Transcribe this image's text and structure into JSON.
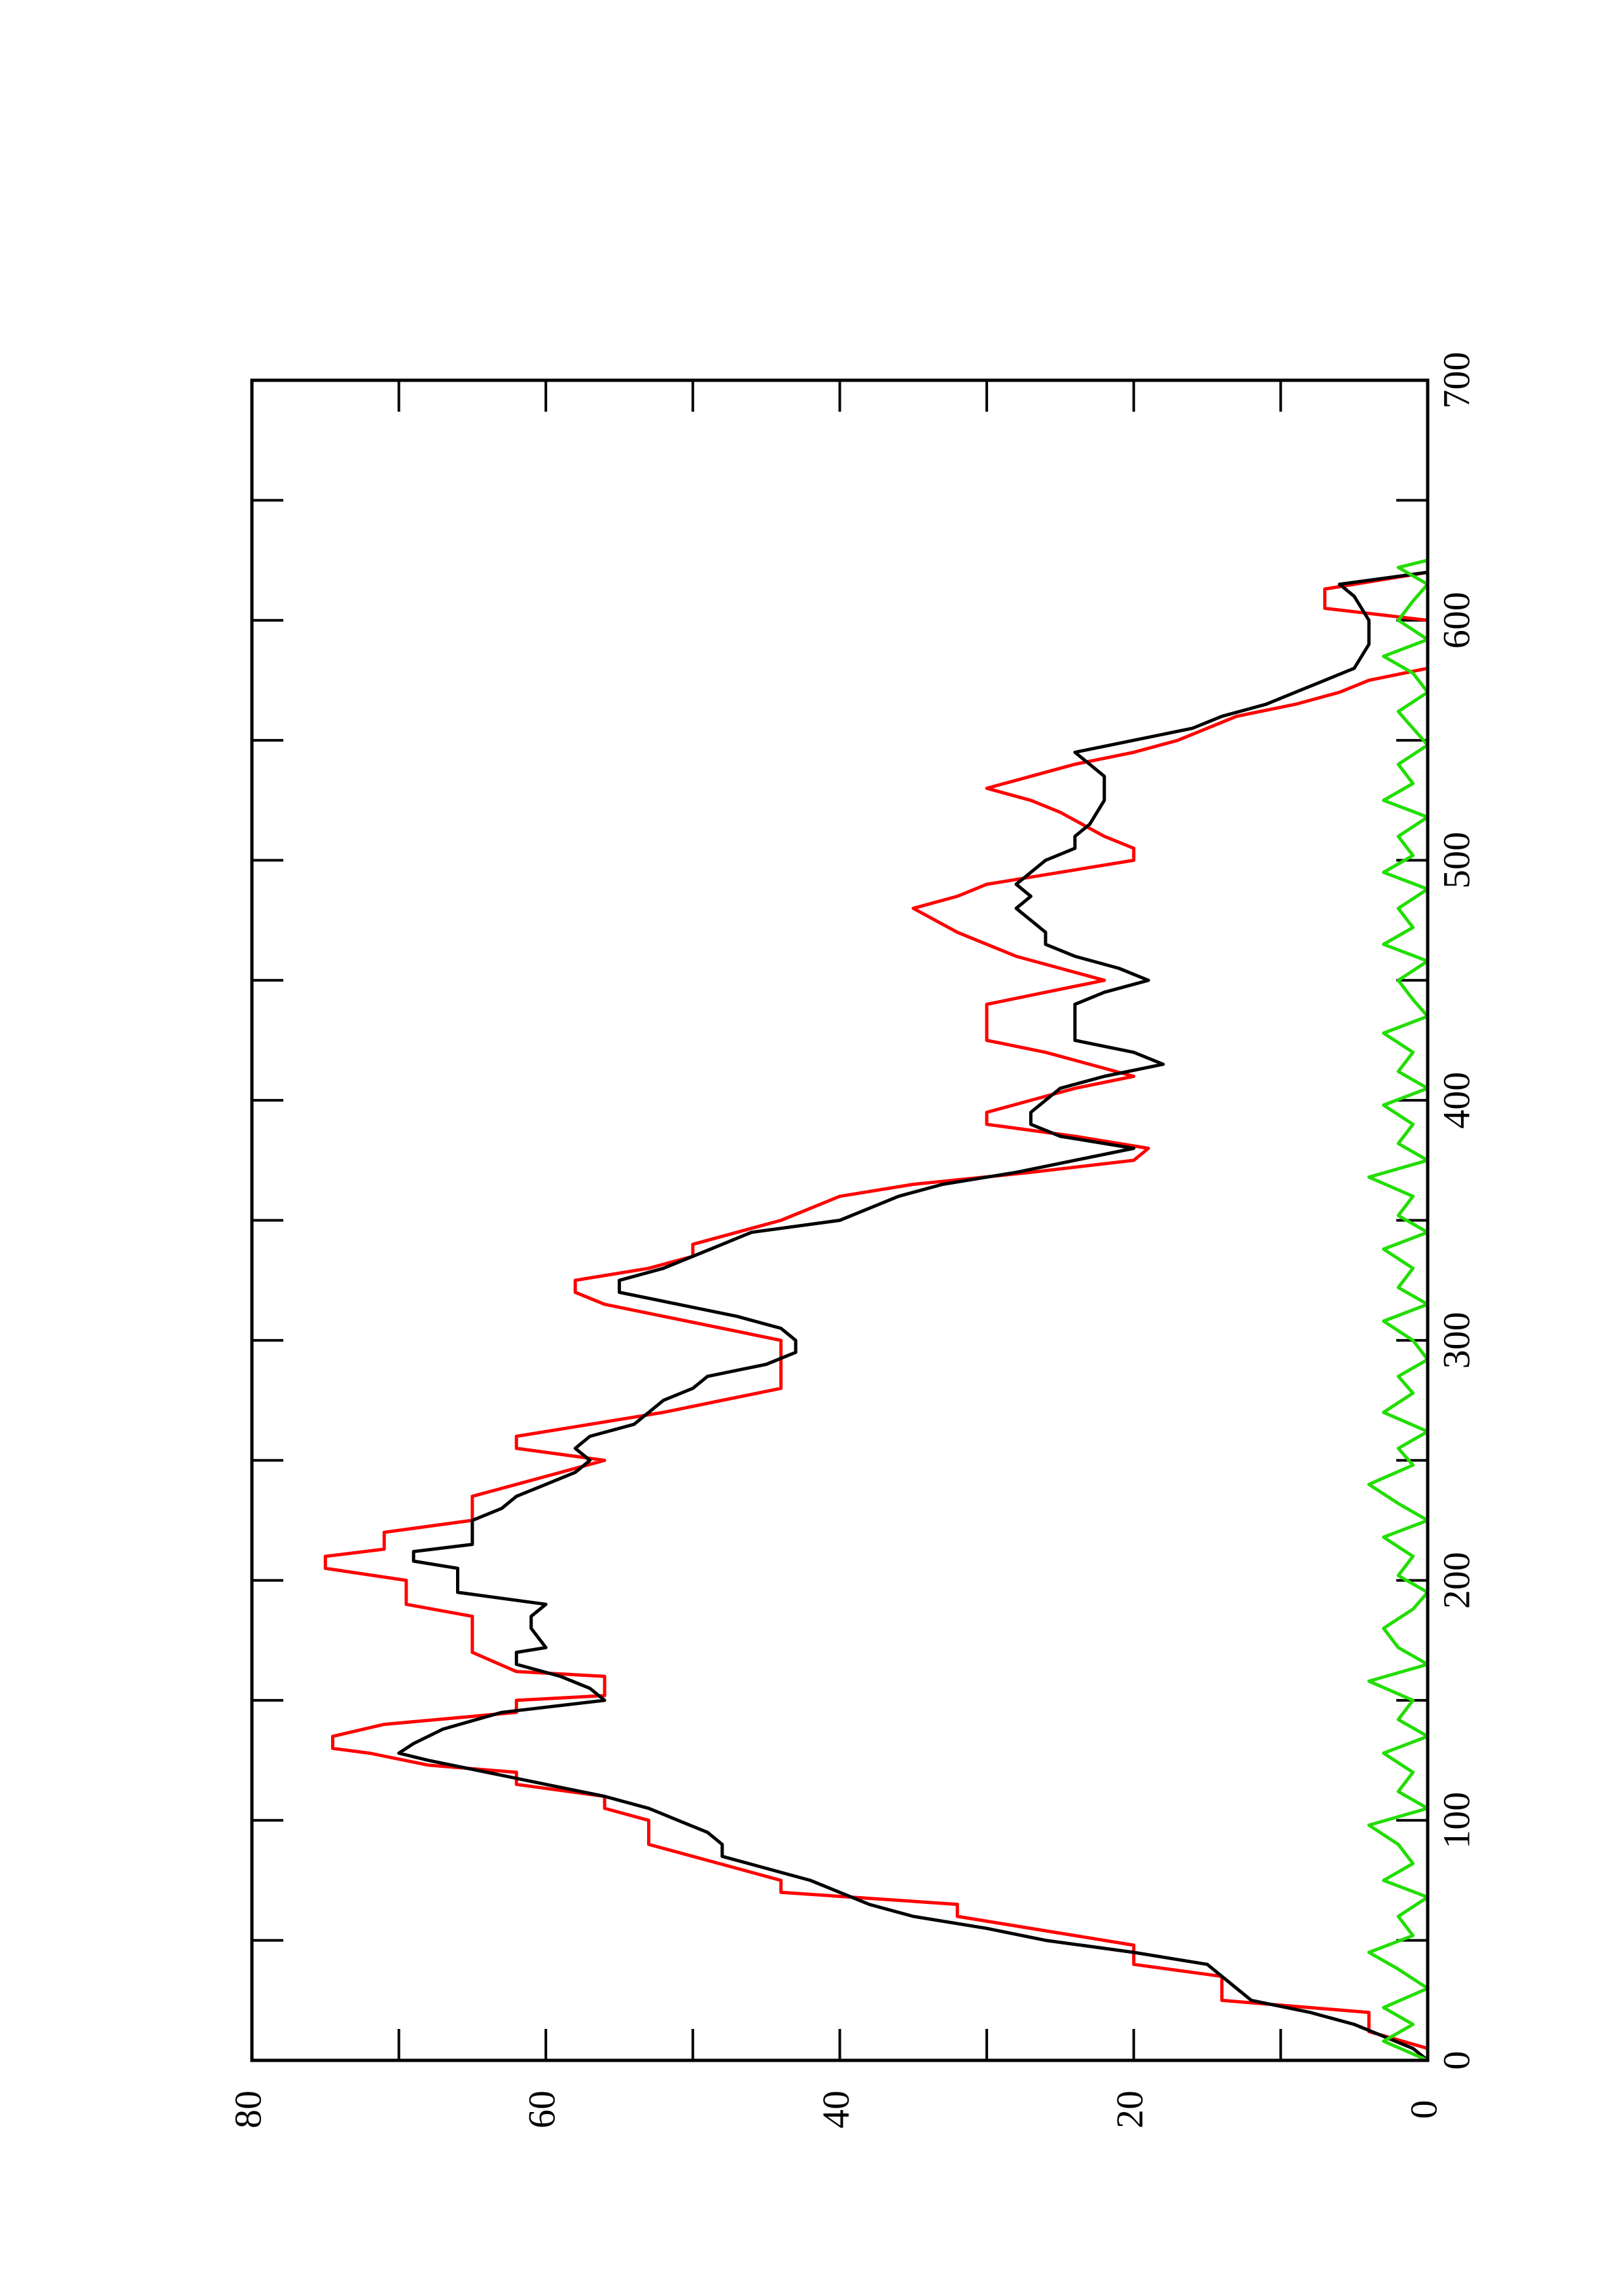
{
  "chart_data": {
    "type": "line",
    "xlim": [
      0,
      700
    ],
    "xticks": [
      0,
      100,
      200,
      300,
      400,
      500,
      600,
      700
    ],
    "xminor_ticks": [
      50,
      150,
      250,
      350,
      450,
      550,
      650
    ],
    "ylim": [
      0,
      80
    ],
    "yticks": [
      0,
      20,
      40,
      60,
      80
    ],
    "yminor_ticks": [
      10,
      30,
      50,
      70
    ],
    "rotated": true,
    "series": [
      {
        "color": "#ff0000",
        "step": true,
        "x": [
          5,
          12,
          20,
          25,
          35,
          40,
          48,
          60,
          65,
          70,
          75,
          80,
          90,
          100,
          105,
          110,
          115,
          120,
          123,
          128,
          130,
          135,
          140,
          145,
          150,
          152,
          160,
          162,
          170,
          185,
          190,
          200,
          205,
          210,
          213,
          220,
          225,
          235,
          240,
          245,
          250,
          255,
          260,
          270,
          275,
          280,
          300,
          305,
          310,
          315,
          320,
          325,
          330,
          335,
          340,
          345,
          350,
          360,
          365,
          370,
          375,
          380,
          385,
          390,
          395,
          400,
          405,
          410,
          415,
          420,
          425,
          440,
          445,
          450,
          460,
          470,
          480,
          485,
          490,
          500,
          505,
          510,
          520,
          525,
          530,
          535,
          540,
          545,
          550,
          560,
          565,
          570,
          575,
          580,
          600,
          605,
          613,
          620
        ],
        "values": [
          0,
          4,
          4,
          14,
          14,
          20,
          20,
          32,
          32,
          44,
          44,
          47,
          53,
          53,
          56,
          56,
          62,
          62,
          68,
          72,
          74.5,
          74.5,
          71,
          62,
          62,
          56,
          56,
          62,
          65,
          65,
          69.5,
          69.5,
          75,
          75,
          71,
          71,
          65,
          65,
          62,
          59,
          56,
          62,
          62,
          52,
          48,
          44,
          44,
          48,
          52,
          56,
          58,
          58,
          53,
          50,
          50,
          47,
          44,
          40,
          35,
          27,
          20,
          19,
          24,
          30,
          30,
          27,
          24,
          20,
          23,
          26,
          30,
          30,
          26,
          22,
          28,
          32,
          35,
          32,
          30,
          20,
          20,
          22,
          25,
          27,
          30,
          27,
          24,
          20,
          17,
          13,
          9,
          6,
          4,
          0,
          0,
          7,
          7,
          0
        ]
      },
      {
        "color": "#000000",
        "x": [
          0,
          5,
          10,
          15,
          20,
          25,
          30,
          40,
          45,
          50,
          55,
          60,
          65,
          70,
          75,
          80,
          85,
          90,
          95,
          100,
          105,
          110,
          115,
          120,
          125,
          128,
          132,
          138,
          145,
          150,
          155,
          160,
          165,
          170,
          172,
          180,
          185,
          190,
          195,
          200,
          205,
          208,
          212,
          215,
          225,
          230,
          235,
          240,
          245,
          250,
          255,
          260,
          265,
          270,
          275,
          280,
          285,
          290,
          295,
          300,
          305,
          310,
          315,
          320,
          325,
          330,
          335,
          340,
          345,
          350,
          355,
          360,
          365,
          370,
          375,
          380,
          385,
          390,
          395,
          400,
          405,
          410,
          415,
          420,
          425,
          440,
          445,
          450,
          455,
          460,
          465,
          470,
          475,
          480,
          485,
          490,
          495,
          500,
          505,
          510,
          515,
          525,
          535,
          540,
          545,
          550,
          555,
          560,
          565,
          570,
          575,
          580,
          590,
          600,
          610,
          615,
          620
        ],
        "values": [
          0,
          1,
          3,
          5,
          8,
          12,
          13,
          15,
          20,
          26,
          30,
          35,
          38,
          40,
          42,
          45,
          48,
          48,
          49,
          51,
          53,
          56,
          60,
          64,
          68,
          70,
          69,
          67,
          63,
          56,
          57,
          59,
          62,
          62,
          60,
          61,
          61,
          60,
          66,
          66,
          66,
          69,
          69,
          65,
          65,
          63,
          62,
          60,
          58,
          57,
          58,
          57,
          54,
          53,
          52,
          50,
          49,
          45,
          43,
          43,
          44,
          47,
          51,
          55,
          55,
          52,
          50,
          48,
          46,
          40,
          38,
          36,
          33,
          28,
          24,
          20,
          25,
          27,
          27,
          26,
          25,
          22,
          18,
          20,
          24,
          24,
          22,
          19,
          21,
          24,
          26,
          26,
          27,
          28,
          27,
          28,
          27,
          26,
          24,
          24,
          23,
          22,
          22,
          23,
          24,
          20,
          16,
          14,
          11,
          9,
          7,
          5,
          4,
          4,
          5,
          6,
          0
        ]
      },
      {
        "color": "#22dd00",
        "x": [
          0,
          8,
          15,
          22,
          30,
          38,
          45,
          52,
          60,
          68,
          75,
          82,
          90,
          98,
          105,
          112,
          120,
          128,
          135,
          142,
          150,
          158,
          165,
          172,
          180,
          188,
          195,
          202,
          210,
          218,
          225,
          232,
          240,
          248,
          255,
          262,
          270,
          278,
          285,
          292,
          300,
          308,
          315,
          322,
          330,
          338,
          345,
          352,
          360,
          368,
          375,
          382,
          390,
          398,
          405,
          412,
          420,
          428,
          435,
          442,
          450,
          458,
          465,
          472,
          480,
          488,
          495,
          502,
          510,
          518,
          525,
          532,
          540,
          548,
          555,
          562,
          570,
          578,
          585,
          592,
          600,
          608,
          615,
          622,
          625
        ],
        "values": [
          0,
          3,
          1,
          3,
          0,
          2,
          4,
          1,
          2,
          0,
          3,
          1,
          2,
          4,
          0,
          2,
          1,
          3,
          0,
          2,
          1,
          4,
          0,
          2,
          3,
          1,
          0,
          2,
          1,
          3,
          0,
          2,
          4,
          1,
          2,
          0,
          3,
          1,
          2,
          0,
          1,
          3,
          0,
          2,
          1,
          3,
          0,
          2,
          1,
          4,
          0,
          2,
          1,
          3,
          0,
          2,
          1,
          3,
          0,
          1,
          2,
          0,
          3,
          1,
          2,
          0,
          3,
          1,
          2,
          0,
          3,
          1,
          2,
          0,
          1,
          2,
          0,
          1,
          3,
          0,
          2,
          1,
          0,
          2,
          0
        ]
      }
    ]
  }
}
